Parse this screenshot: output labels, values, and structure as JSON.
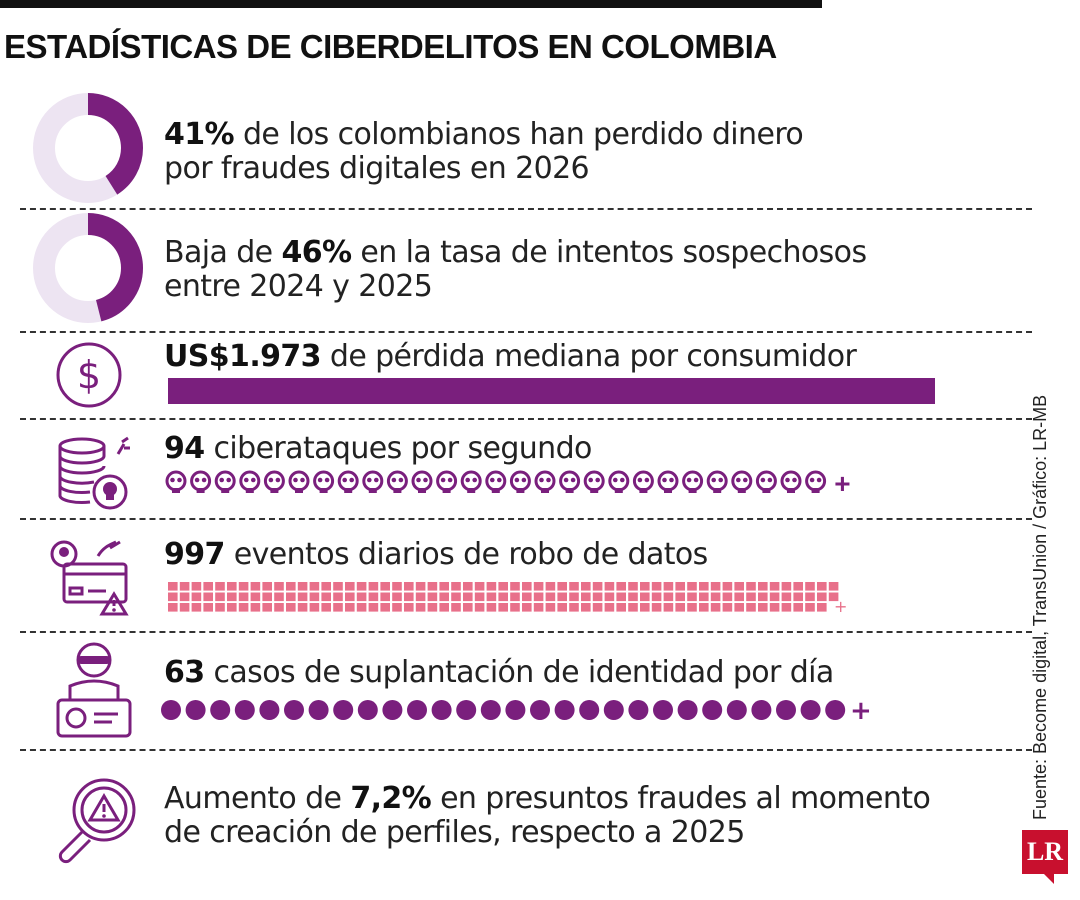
{
  "title": "ESTADÍSTICAS DE CIBERDELITOS EN COLOMBIA",
  "source": "Fuente: Become digital, TransUnion / Gráfico: LR-MB",
  "logo": "LR",
  "colors": {
    "purple": "#7a1f7d",
    "light_purple": "#ede4f2",
    "pink": "#e8708a",
    "dark": "#111111"
  },
  "chart_data": {
    "type": "table",
    "stats": [
      {
        "value": "41%",
        "pre": "",
        "post": " de los colombianos han perdido dinero",
        "line2": "por fraudes digitales en 2026",
        "icon": "donut-icon",
        "percent": 41
      },
      {
        "value": "46%",
        "pre": "Baja de ",
        "post": " en la tasa de intentos sospechosos",
        "line2": "entre 2024 y 2025",
        "icon": "donut-icon",
        "percent": 46
      },
      {
        "value": "US$1.973",
        "pre": "",
        "post": " de pérdida mediana por consumidor",
        "line2": "",
        "icon": "dollar-icon"
      },
      {
        "value": "94",
        "pre": "",
        "post": " ciberataques por segundo",
        "line2": "",
        "icon": "coin-stack-skull-icon",
        "glyphs": 27,
        "plus": "+"
      },
      {
        "value": "997",
        "pre": "",
        "post": " eventos diarios de robo de datos",
        "line2": "",
        "icon": "credit-card-theft-icon",
        "plus": "+"
      },
      {
        "value": "63",
        "pre": "",
        "post": " casos de suplantación de identidad por día",
        "line2": "",
        "icon": "impostor-id-icon",
        "glyphs": 28,
        "plus": "+"
      },
      {
        "value": "7,2%",
        "pre": " Aumento de ",
        "post": " en presuntos fraudes al momento",
        "line2": "de creación de perfiles, respecto a 2025",
        "icon": "magnifier-warning-icon"
      }
    ]
  }
}
